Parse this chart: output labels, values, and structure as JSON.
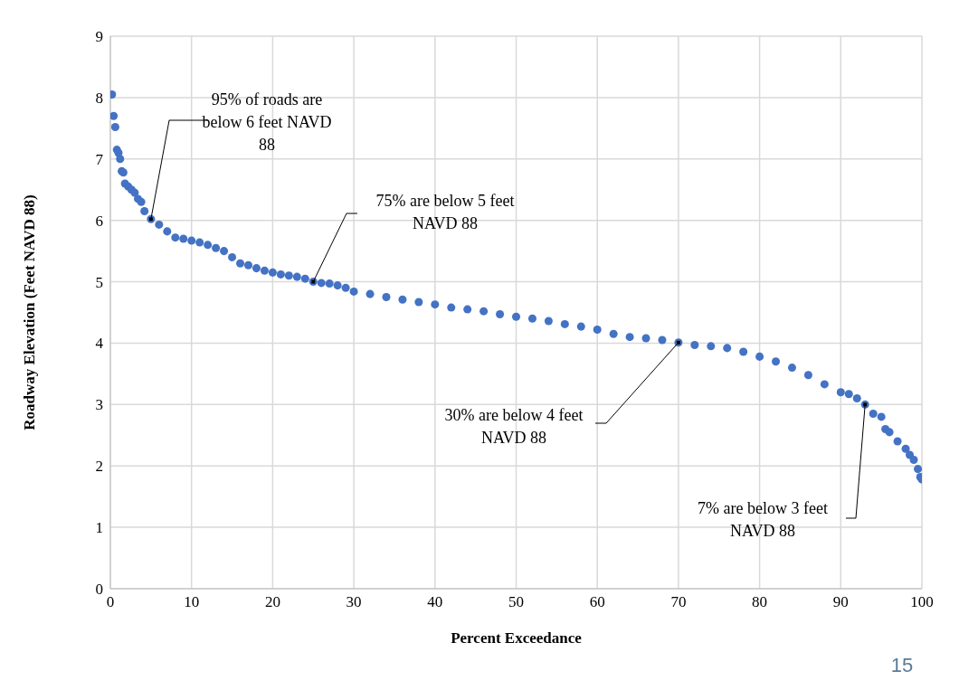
{
  "chart_data": {
    "type": "scatter",
    "xlabel": "Percent Exceedance",
    "ylabel": "Roadway Elevation (Feet NAVD 88)",
    "x": [
      0.2,
      0.4,
      0.6,
      0.8,
      1.0,
      1.2,
      1.4,
      1.6,
      1.8,
      2.2,
      2.6,
      3.0,
      3.4,
      3.8,
      4.2,
      5,
      6,
      7,
      8,
      9,
      10,
      11,
      12,
      13,
      14,
      15,
      16,
      17,
      18,
      19,
      20,
      21,
      22,
      23,
      24,
      25,
      26,
      27,
      28,
      29,
      30,
      32,
      34,
      36,
      38,
      40,
      42,
      44,
      46,
      48,
      50,
      52,
      54,
      56,
      58,
      60,
      62,
      64,
      66,
      68,
      70,
      72,
      74,
      76,
      78,
      80,
      82,
      84,
      86,
      88,
      90,
      91,
      92,
      93,
      94,
      95,
      95.5,
      96,
      97,
      98,
      98.5,
      99,
      99.5,
      99.8,
      100
    ],
    "series": [
      {
        "color": "#4472c4",
        "values": [
          8.05,
          7.7,
          7.52,
          7.15,
          7.1,
          7.0,
          6.8,
          6.78,
          6.6,
          6.55,
          6.5,
          6.45,
          6.35,
          6.3,
          6.15,
          6.02,
          5.93,
          5.82,
          5.72,
          5.7,
          5.67,
          5.64,
          5.6,
          5.55,
          5.5,
          5.4,
          5.3,
          5.27,
          5.22,
          5.18,
          5.15,
          5.12,
          5.1,
          5.08,
          5.05,
          5.0,
          4.98,
          4.97,
          4.94,
          4.9,
          4.84,
          4.8,
          4.75,
          4.71,
          4.67,
          4.63,
          4.58,
          4.55,
          4.52,
          4.47,
          4.43,
          4.4,
          4.36,
          4.31,
          4.27,
          4.22,
          4.15,
          4.1,
          4.08,
          4.05,
          4.01,
          3.97,
          3.95,
          3.92,
          3.86,
          3.78,
          3.7,
          3.6,
          3.48,
          3.33,
          3.2,
          3.17,
          3.1,
          3.0,
          2.85,
          2.8,
          2.6,
          2.55,
          2.4,
          2.28,
          2.18,
          2.1,
          1.95,
          1.82,
          1.78
        ]
      }
    ],
    "xlim": [
      0,
      100
    ],
    "xticks": [
      0,
      10,
      20,
      30,
      40,
      50,
      60,
      70,
      80,
      90,
      100
    ],
    "ylim": [
      0,
      9
    ],
    "yticks": [
      0,
      1,
      2,
      3,
      4,
      5,
      6,
      7,
      8,
      9
    ],
    "grid": true,
    "marker": "circle",
    "legend": false,
    "annotations": [
      {
        "text": "95% of roads are below 6 feet NAVD 88",
        "x": 5,
        "y": 6.02
      },
      {
        "text": "75% are below 5 feet NAVD 88",
        "x": 25,
        "y": 5.0
      },
      {
        "text": "30% are below 4 feet NAVD 88",
        "x": 70,
        "y": 4.01
      },
      {
        "text": "7% are below 3 feet NAVD 88",
        "x": 93,
        "y": 3.0
      },
      "15"
    ]
  }
}
